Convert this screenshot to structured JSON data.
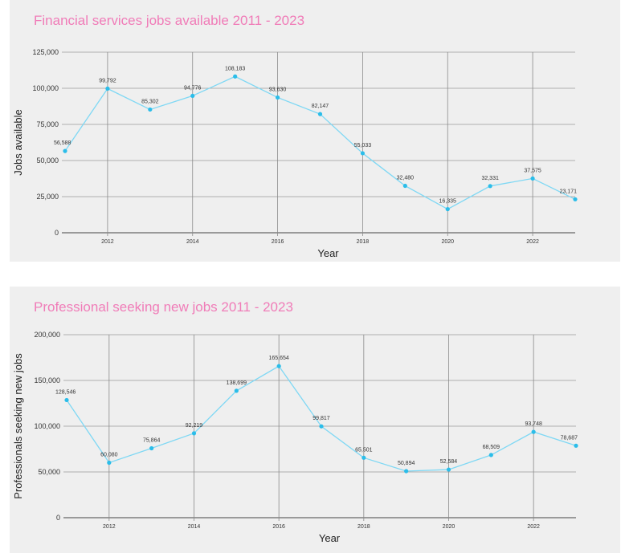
{
  "chart_data": [
    {
      "type": "line",
      "title": "Financial services jobs available 2011 - 2023",
      "xlabel": "Year",
      "ylabel": "Jobs available",
      "x": [
        2011,
        2012,
        2013,
        2014,
        2015,
        2016,
        2017,
        2018,
        2019,
        2020,
        2021,
        2022,
        2023
      ],
      "values": [
        56588,
        99792,
        85302,
        94776,
        108183,
        93630,
        82147,
        55033,
        32480,
        16335,
        32331,
        37575,
        23171
      ],
      "data_labels": [
        "56,588",
        "99,792",
        "85,302",
        "94,776",
        "108,183",
        "93,630",
        "82,147",
        "55,033",
        "32,480",
        "16,335",
        "32,331",
        "37,575",
        "23,171"
      ],
      "ylim": [
        0,
        125000
      ],
      "yticks": [
        0,
        25000,
        50000,
        75000,
        100000,
        125000
      ],
      "ytick_labels": [
        "0",
        "25,000",
        "50,000",
        "75,000",
        "100,000",
        "125,000"
      ],
      "xticks": [
        2012,
        2014,
        2016,
        2018,
        2020,
        2022
      ],
      "xtick_labels": [
        "2012",
        "2014",
        "2016",
        "2018",
        "2020",
        "2022"
      ],
      "xlim": [
        2011,
        2023
      ],
      "grid": true,
      "line_color": "#7fd8f4",
      "marker_color": "#2bbde9"
    },
    {
      "type": "line",
      "title": "Professional seeking new jobs 2011 - 2023",
      "xlabel": "Year",
      "ylabel": "Professionals seeking new jobs",
      "x": [
        2011,
        2012,
        2013,
        2014,
        2015,
        2016,
        2017,
        2018,
        2019,
        2020,
        2021,
        2022,
        2023
      ],
      "values": [
        128546,
        60080,
        75864,
        92219,
        138699,
        165654,
        99817,
        65501,
        50894,
        52584,
        68509,
        93748,
        78687
      ],
      "data_labels": [
        "128,546",
        "60,080",
        "75,864",
        "92,219",
        "138,699",
        "165,654",
        "99,817",
        "65,501",
        "50,894",
        "52,584",
        "68,509",
        "93,748",
        "78,687"
      ],
      "ylim": [
        0,
        200000
      ],
      "yticks": [
        0,
        50000,
        100000,
        150000,
        200000
      ],
      "ytick_labels": [
        "0",
        "50,000",
        "100,000",
        "150,000",
        "200,000"
      ],
      "xticks": [
        2012,
        2014,
        2016,
        2018,
        2020,
        2022
      ],
      "xtick_labels": [
        "2012",
        "2014",
        "2016",
        "2018",
        "2020",
        "2022"
      ],
      "xlim": [
        2011,
        2023
      ],
      "grid": true,
      "line_color": "#7fd8f4",
      "marker_color": "#2bbde9"
    }
  ]
}
